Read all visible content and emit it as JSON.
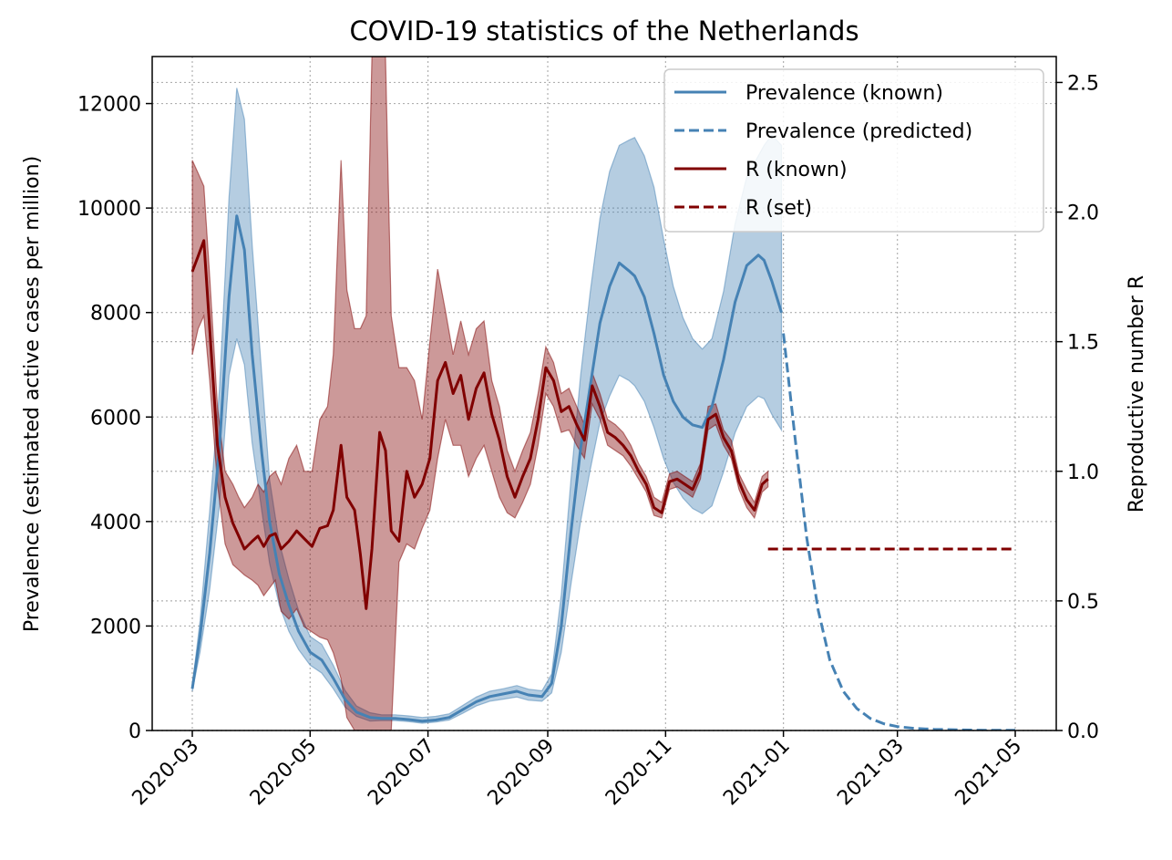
{
  "chart_data": {
    "type": "line",
    "title": "COVID-19 statistics of the Netherlands",
    "xlabel": "",
    "ylabel": "Prevalence (estimated active cases per million)",
    "ylabel_right": "Reproductive number R",
    "ylim": [
      0,
      12900
    ],
    "ylim_right": [
      0,
      2.6
    ],
    "x_ticks": [
      "2020-03",
      "2020-05",
      "2020-07",
      "2020-09",
      "2020-11",
      "2021-01",
      "2021-03",
      "2021-05"
    ],
    "y_ticks": [
      0,
      2000,
      4000,
      6000,
      8000,
      10000,
      12000
    ],
    "y_ticks_right": [
      0.0,
      0.5,
      1.0,
      1.5,
      2.0,
      2.5
    ],
    "grid": true,
    "legend_placement": "top-right",
    "colors": {
      "prevalence": "#4682b4",
      "r": "#800000"
    },
    "series": [
      {
        "name": "Prevalence (known)",
        "axis": "left",
        "style": "solid",
        "x": [
          "2020-03-01",
          "2020-03-05",
          "2020-03-10",
          "2020-03-15",
          "2020-03-20",
          "2020-03-24",
          "2020-03-28",
          "2020-04-01",
          "2020-04-06",
          "2020-04-10",
          "2020-04-15",
          "2020-04-20",
          "2020-04-25",
          "2020-05-01",
          "2020-05-07",
          "2020-05-13",
          "2020-05-19",
          "2020-05-25",
          "2020-06-01",
          "2020-06-07",
          "2020-06-14",
          "2020-06-21",
          "2020-06-28",
          "2020-07-05",
          "2020-07-12",
          "2020-07-19",
          "2020-07-26",
          "2020-08-02",
          "2020-08-09",
          "2020-08-16",
          "2020-08-22",
          "2020-08-29",
          "2020-09-03",
          "2020-09-08",
          "2020-09-13",
          "2020-09-18",
          "2020-09-23",
          "2020-09-28",
          "2020-10-03",
          "2020-10-08",
          "2020-10-13",
          "2020-10-16",
          "2020-10-21",
          "2020-10-26",
          "2020-10-31",
          "2020-11-05",
          "2020-11-10",
          "2020-11-15",
          "2020-11-20",
          "2020-11-25",
          "2020-12-01",
          "2020-12-07",
          "2020-12-13",
          "2020-12-19",
          "2020-12-22",
          "2020-12-26",
          "2020-12-31"
        ],
        "values": [
          800,
          1800,
          3400,
          5400,
          8300,
          9850,
          9200,
          7200,
          5300,
          4000,
          3000,
          2400,
          1900,
          1500,
          1350,
          1000,
          600,
          350,
          250,
          230,
          230,
          210,
          180,
          200,
          250,
          400,
          550,
          650,
          700,
          750,
          680,
          650,
          900,
          2000,
          3800,
          5400,
          6600,
          7800,
          8500,
          8950,
          8800,
          8700,
          8300,
          7600,
          6800,
          6300,
          6000,
          5850,
          5800,
          6200,
          7100,
          8200,
          8900,
          9100,
          9000,
          8600,
          8000
        ]
      },
      {
        "name": "Prevalence (predicted)",
        "axis": "left",
        "style": "dashed",
        "x": [
          "2021-01-01",
          "2021-01-07",
          "2021-01-13",
          "2021-01-19",
          "2021-01-25",
          "2021-02-01",
          "2021-02-08",
          "2021-02-15",
          "2021-02-22",
          "2021-03-01",
          "2021-03-10",
          "2021-03-20",
          "2021-04-01",
          "2021-04-15",
          "2021-05-01"
        ],
        "values": [
          7600,
          5600,
          3700,
          2300,
          1350,
          750,
          420,
          230,
          130,
          75,
          40,
          22,
          12,
          6,
          3
        ]
      },
      {
        "name": "R (known)",
        "axis": "right",
        "style": "solid",
        "x": [
          "2020-03-01",
          "2020-03-04",
          "2020-03-07",
          "2020-03-10",
          "2020-03-14",
          "2020-03-18",
          "2020-03-22",
          "2020-03-25",
          "2020-03-28",
          "2020-04-01",
          "2020-04-04",
          "2020-04-07",
          "2020-04-10",
          "2020-04-13",
          "2020-04-16",
          "2020-04-20",
          "2020-04-24",
          "2020-04-28",
          "2020-05-02",
          "2020-05-06",
          "2020-05-10",
          "2020-05-13",
          "2020-05-17",
          "2020-05-20",
          "2020-05-24",
          "2020-05-27",
          "2020-05-30",
          "2020-06-02",
          "2020-06-06",
          "2020-06-09",
          "2020-06-12",
          "2020-06-16",
          "2020-06-20",
          "2020-06-24",
          "2020-06-28",
          "2020-07-02",
          "2020-07-06",
          "2020-07-10",
          "2020-07-14",
          "2020-07-18",
          "2020-07-22",
          "2020-07-26",
          "2020-07-30",
          "2020-08-03",
          "2020-08-07",
          "2020-08-11",
          "2020-08-15",
          "2020-08-19",
          "2020-08-23",
          "2020-08-27",
          "2020-08-31",
          "2020-09-04",
          "2020-09-08",
          "2020-09-12",
          "2020-09-16",
          "2020-09-20",
          "2020-09-24",
          "2020-09-28",
          "2020-10-02",
          "2020-10-06",
          "2020-10-10",
          "2020-10-14",
          "2020-10-18",
          "2020-10-22",
          "2020-10-26",
          "2020-10-30",
          "2020-11-03",
          "2020-11-07",
          "2020-11-11",
          "2020-11-15",
          "2020-11-19",
          "2020-11-23",
          "2020-11-27",
          "2020-12-01",
          "2020-12-05",
          "2020-12-09",
          "2020-12-13",
          "2020-12-17",
          "2020-12-21",
          "2020-12-24"
        ],
        "values": [
          1.77,
          1.83,
          1.89,
          1.55,
          1.1,
          0.9,
          0.8,
          0.75,
          0.7,
          0.73,
          0.75,
          0.71,
          0.75,
          0.76,
          0.7,
          0.73,
          0.77,
          0.74,
          0.71,
          0.78,
          0.79,
          0.85,
          1.1,
          0.9,
          0.85,
          0.68,
          0.47,
          0.7,
          1.15,
          1.08,
          0.77,
          0.73,
          1.0,
          0.9,
          0.95,
          1.05,
          1.35,
          1.42,
          1.3,
          1.37,
          1.2,
          1.32,
          1.38,
          1.22,
          1.12,
          0.98,
          0.9,
          0.98,
          1.05,
          1.2,
          1.4,
          1.35,
          1.23,
          1.25,
          1.18,
          1.12,
          1.33,
          1.25,
          1.15,
          1.13,
          1.1,
          1.06,
          1.0,
          0.95,
          0.86,
          0.84,
          0.96,
          0.97,
          0.95,
          0.93,
          1.0,
          1.2,
          1.22,
          1.13,
          1.08,
          0.96,
          0.89,
          0.85,
          0.95,
          0.97
        ]
      },
      {
        "name": "R (set)",
        "axis": "right",
        "style": "dashed",
        "x": [
          "2020-12-24",
          "2021-05-01"
        ],
        "values": [
          0.7,
          0.7
        ]
      }
    ],
    "bands": [
      {
        "series": "Prevalence (known)",
        "x": [
          "2020-03-01",
          "2020-03-05",
          "2020-03-10",
          "2020-03-15",
          "2020-03-20",
          "2020-03-24",
          "2020-03-28",
          "2020-04-01",
          "2020-04-06",
          "2020-04-10",
          "2020-04-15",
          "2020-04-20",
          "2020-04-25",
          "2020-05-01",
          "2020-05-07",
          "2020-05-13",
          "2020-05-19",
          "2020-05-25",
          "2020-06-01",
          "2020-06-07",
          "2020-06-14",
          "2020-06-21",
          "2020-06-28",
          "2020-07-05",
          "2020-07-12",
          "2020-07-19",
          "2020-07-26",
          "2020-08-02",
          "2020-08-09",
          "2020-08-16",
          "2020-08-22",
          "2020-08-29",
          "2020-09-03",
          "2020-09-08",
          "2020-09-13",
          "2020-09-18",
          "2020-09-23",
          "2020-09-28",
          "2020-10-03",
          "2020-10-08",
          "2020-10-13",
          "2020-10-16",
          "2020-10-21",
          "2020-10-26",
          "2020-10-31",
          "2020-11-05",
          "2020-11-10",
          "2020-11-15",
          "2020-11-20",
          "2020-11-25",
          "2020-12-01",
          "2020-12-07",
          "2020-12-13",
          "2020-12-19",
          "2020-12-22",
          "2020-12-26",
          "2020-12-31"
        ],
        "lower": [
          750,
          1500,
          2700,
          4300,
          6800,
          7500,
          7000,
          5500,
          4200,
          3200,
          2400,
          1900,
          1550,
          1250,
          1100,
          800,
          450,
          270,
          180,
          190,
          190,
          170,
          140,
          160,
          200,
          330,
          470,
          560,
          600,
          640,
          580,
          560,
          720,
          1500,
          2800,
          4000,
          5000,
          5900,
          6400,
          6800,
          6700,
          6600,
          6300,
          5800,
          5200,
          4750,
          4450,
          4250,
          4150,
          4300,
          4950,
          5700,
          6200,
          6400,
          6350,
          6050,
          5750
        ],
        "upper": [
          850,
          2100,
          4200,
          6500,
          10200,
          12300,
          11700,
          9300,
          6800,
          4800,
          3600,
          2900,
          2300,
          1800,
          1650,
          1250,
          770,
          470,
          340,
          300,
          300,
          280,
          250,
          270,
          320,
          480,
          640,
          750,
          800,
          860,
          790,
          760,
          1080,
          2600,
          4800,
          6800,
          8400,
          9800,
          10700,
          11200,
          11300,
          11350,
          11000,
          10400,
          9400,
          8500,
          7900,
          7500,
          7300,
          7500,
          8400,
          9700,
          10600,
          11000,
          11200,
          11400,
          11200
        ]
      },
      {
        "series": "R (known)",
        "x": [
          "2020-03-01",
          "2020-03-04",
          "2020-03-07",
          "2020-03-10",
          "2020-03-14",
          "2020-03-18",
          "2020-03-22",
          "2020-03-25",
          "2020-03-28",
          "2020-04-01",
          "2020-04-04",
          "2020-04-07",
          "2020-04-10",
          "2020-04-13",
          "2020-04-16",
          "2020-04-20",
          "2020-04-24",
          "2020-04-28",
          "2020-05-02",
          "2020-05-06",
          "2020-05-10",
          "2020-05-13",
          "2020-05-17",
          "2020-05-20",
          "2020-05-24",
          "2020-05-27",
          "2020-05-30",
          "2020-06-02",
          "2020-06-06",
          "2020-06-09",
          "2020-06-12",
          "2020-06-16",
          "2020-06-20",
          "2020-06-24",
          "2020-06-28",
          "2020-07-02",
          "2020-07-06",
          "2020-07-10",
          "2020-07-14",
          "2020-07-18",
          "2020-07-22",
          "2020-07-26",
          "2020-07-30",
          "2020-08-03",
          "2020-08-07",
          "2020-08-11",
          "2020-08-15",
          "2020-08-19",
          "2020-08-23",
          "2020-08-27",
          "2020-08-31",
          "2020-09-04",
          "2020-09-08",
          "2020-09-12",
          "2020-09-16",
          "2020-09-20",
          "2020-09-24",
          "2020-09-28",
          "2020-10-02",
          "2020-10-06",
          "2020-10-10",
          "2020-10-14",
          "2020-10-18",
          "2020-10-22",
          "2020-10-26",
          "2020-10-30",
          "2020-11-03",
          "2020-11-07",
          "2020-11-11",
          "2020-11-15",
          "2020-11-19",
          "2020-11-23",
          "2020-11-27",
          "2020-12-01",
          "2020-12-05",
          "2020-12-09",
          "2020-12-13",
          "2020-12-17",
          "2020-12-21",
          "2020-12-24"
        ],
        "lower": [
          1.45,
          1.55,
          1.6,
          1.35,
          0.95,
          0.72,
          0.64,
          0.62,
          0.6,
          0.58,
          0.56,
          0.52,
          0.55,
          0.58,
          0.46,
          0.43,
          0.47,
          0.4,
          0.38,
          0.36,
          0.35,
          0.3,
          0.2,
          0.05,
          0.0,
          0.0,
          0.0,
          0.0,
          0.0,
          0.0,
          0.0,
          0.65,
          0.72,
          0.7,
          0.78,
          0.85,
          1.05,
          1.2,
          1.1,
          1.1,
          0.98,
          1.05,
          1.1,
          1.0,
          0.9,
          0.84,
          0.82,
          0.88,
          0.95,
          1.1,
          1.3,
          1.25,
          1.15,
          1.16,
          1.1,
          1.05,
          1.26,
          1.2,
          1.1,
          1.08,
          1.06,
          1.02,
          0.97,
          0.92,
          0.83,
          0.82,
          0.93,
          0.94,
          0.92,
          0.9,
          0.97,
          1.16,
          1.18,
          1.1,
          1.05,
          0.93,
          0.86,
          0.82,
          0.92,
          0.94
        ],
        "upper": [
          2.2,
          2.15,
          2.1,
          1.75,
          1.25,
          1.0,
          0.95,
          0.9,
          0.86,
          0.9,
          0.95,
          0.92,
          0.98,
          1.0,
          0.95,
          1.05,
          1.1,
          1.0,
          1.0,
          1.2,
          1.25,
          1.45,
          2.2,
          1.7,
          1.55,
          1.55,
          1.6,
          2.6,
          2.6,
          2.6,
          1.6,
          1.4,
          1.4,
          1.35,
          1.2,
          1.5,
          1.78,
          1.62,
          1.45,
          1.58,
          1.45,
          1.55,
          1.58,
          1.35,
          1.25,
          1.08,
          1.0,
          1.08,
          1.15,
          1.3,
          1.48,
          1.42,
          1.3,
          1.32,
          1.25,
          1.18,
          1.38,
          1.3,
          1.2,
          1.18,
          1.15,
          1.1,
          1.03,
          0.98,
          0.9,
          0.88,
          0.99,
          1.0,
          0.98,
          0.96,
          1.03,
          1.25,
          1.26,
          1.16,
          1.12,
          0.99,
          0.93,
          0.88,
          0.98,
          1.0
        ]
      }
    ]
  }
}
